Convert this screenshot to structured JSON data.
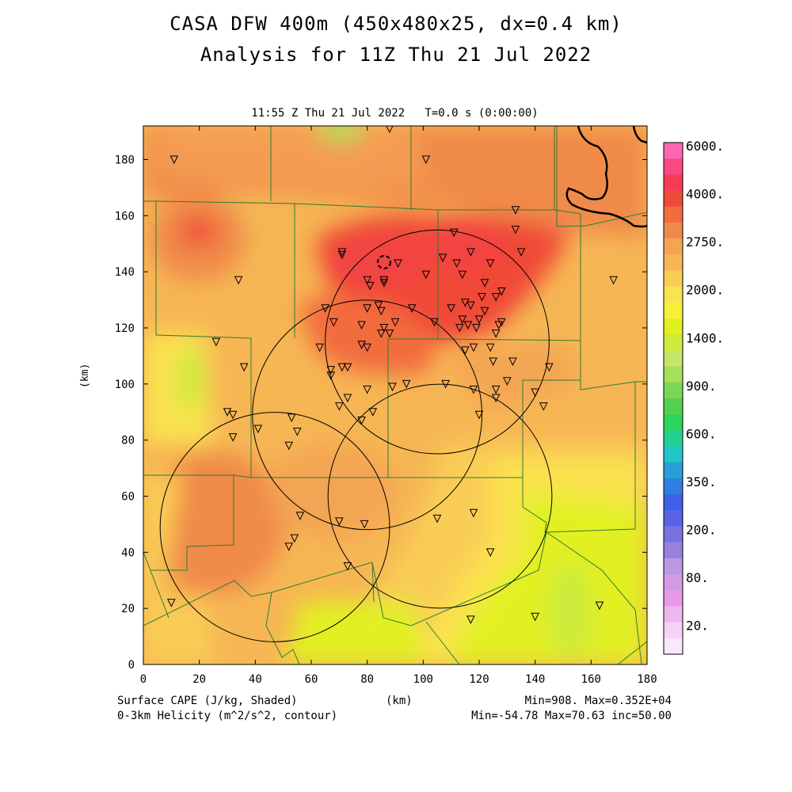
{
  "title": {
    "line1": "CASA DFW 400m (450x480x25, dx=0.4 km)",
    "line2": "Analysis for 11Z Thu 21 Jul 2022"
  },
  "subtitle": "11:55 Z Thu 21 Jul 2022   T=0.0 s (0:00:00)",
  "footer": {
    "left1": "Surface CAPE (J/kg, Shaded)",
    "left2": "0-3km Helicity (m^2/s^2, contour)",
    "xunit": "(km)",
    "right1": "Min=908. Max=0.352E+04",
    "right2": "Min=-54.78 Max=70.63 inc=50.00"
  },
  "colors": {
    "background_field": "#f6b654",
    "high_cape": "#f04a38",
    "mid_cape": "#f08a4a",
    "low_cape": "#e2f020",
    "county_lines": "#2e7d32",
    "radar_rings": "#000000"
  },
  "chart_data": {
    "type": "heatmap",
    "xlabel": "(km)",
    "ylabel": "(km)",
    "xlim": [
      0,
      180
    ],
    "ylim": [
      0,
      192
    ],
    "xticks": [
      0,
      20,
      40,
      60,
      80,
      100,
      120,
      140,
      160,
      180
    ],
    "yticks": [
      0,
      20,
      40,
      60,
      80,
      100,
      120,
      140,
      160,
      180
    ],
    "colorbar": {
      "labels": [
        "6000.",
        "4000.",
        "2750.",
        "2000.",
        "1400.",
        "900.",
        "600.",
        "350.",
        "200.",
        "80.",
        "20."
      ],
      "colors": [
        "#ff66b2",
        "#fb4a83",
        "#f73b54",
        "#f04a38",
        "#f26c3e",
        "#f08a4a",
        "#f4a552",
        "#f6b654",
        "#f9cd55",
        "#fbe250",
        "#f7f03a",
        "#e2f020",
        "#cdeb3a",
        "#c4e66a",
        "#a4e05a",
        "#7bd658",
        "#55d04e",
        "#2ed45c",
        "#24d290",
        "#22c6c6",
        "#2a9ed8",
        "#2f7fe0",
        "#3d60e8",
        "#5a62e6",
        "#7a72e2",
        "#9882e0",
        "#b89ae4",
        "#d59ae4",
        "#e89ae6",
        "#f0b6ee",
        "#f6d2f6",
        "#fbe6fb"
      ]
    },
    "cape_min": 908,
    "cape_max": 3520,
    "helicity_min": -54.78,
    "helicity_max": 70.63,
    "helicity_inc": 50.0,
    "radar_rings": [
      {
        "cx": 47,
        "cy": 49,
        "r": 41
      },
      {
        "cx": 80,
        "cy": 89,
        "r": 41
      },
      {
        "cx": 106,
        "cy": 60,
        "r": 40
      },
      {
        "cx": 105,
        "cy": 115,
        "r": 40
      }
    ],
    "stations": [
      [
        11,
        180
      ],
      [
        34,
        137
      ],
      [
        26,
        115
      ],
      [
        36,
        106
      ],
      [
        30,
        90
      ],
      [
        32,
        89
      ],
      [
        32,
        81
      ],
      [
        41,
        84
      ],
      [
        53,
        88
      ],
      [
        52,
        78
      ],
      [
        55,
        83
      ],
      [
        56,
        53
      ],
      [
        52,
        42
      ],
      [
        54,
        45
      ],
      [
        73,
        35
      ],
      [
        70,
        51
      ],
      [
        79,
        50
      ],
      [
        10,
        22
      ],
      [
        71,
        147
      ],
      [
        71,
        146
      ],
      [
        65,
        127
      ],
      [
        68,
        122
      ],
      [
        63,
        113
      ],
      [
        67,
        105
      ],
      [
        67,
        103
      ],
      [
        71,
        106
      ],
      [
        73,
        106
      ],
      [
        70,
        92
      ],
      [
        73,
        95
      ],
      [
        78,
        87
      ],
      [
        82,
        90
      ],
      [
        80,
        98
      ],
      [
        89,
        99
      ],
      [
        94,
        100
      ],
      [
        108,
        100
      ],
      [
        118,
        98
      ],
      [
        120,
        89
      ],
      [
        118,
        54
      ],
      [
        105,
        52
      ],
      [
        124,
        40
      ],
      [
        117,
        16
      ],
      [
        140,
        17
      ],
      [
        163,
        21
      ],
      [
        140,
        97
      ],
      [
        126,
        98
      ],
      [
        126,
        95
      ],
      [
        130,
        101
      ],
      [
        80,
        137
      ],
      [
        81,
        135
      ],
      [
        84,
        128
      ],
      [
        85,
        126
      ],
      [
        86,
        120
      ],
      [
        85,
        118
      ],
      [
        88,
        118
      ],
      [
        90,
        122
      ],
      [
        86,
        136
      ],
      [
        86,
        137
      ],
      [
        91,
        143
      ],
      [
        78,
        114
      ],
      [
        80,
        113
      ],
      [
        78,
        121
      ],
      [
        80,
        127
      ],
      [
        96,
        127
      ],
      [
        101,
        139
      ],
      [
        104,
        122
      ],
      [
        110,
        127
      ],
      [
        107,
        145
      ],
      [
        111,
        154
      ],
      [
        112,
        143
      ],
      [
        114,
        139
      ],
      [
        115,
        129
      ],
      [
        117,
        128
      ],
      [
        116,
        121
      ],
      [
        113,
        120
      ],
      [
        114,
        123
      ],
      [
        120,
        123
      ],
      [
        122,
        126
      ],
      [
        119,
        120
      ],
      [
        121,
        131
      ],
      [
        122,
        136
      ],
      [
        124,
        143
      ],
      [
        126,
        131
      ],
      [
        128,
        133
      ],
      [
        125,
        108
      ],
      [
        126,
        118
      ],
      [
        128,
        122
      ],
      [
        127,
        121
      ],
      [
        132,
        108
      ],
      [
        124,
        113
      ],
      [
        118,
        113
      ],
      [
        115,
        112
      ],
      [
        117,
        147
      ],
      [
        133,
        162
      ],
      [
        133,
        155
      ],
      [
        135,
        147
      ],
      [
        145,
        106
      ],
      [
        143,
        92
      ],
      [
        168,
        137
      ],
      [
        88,
        191
      ],
      [
        101,
        180
      ]
    ],
    "helicity_contours": [
      {
        "value": 50,
        "style": "solid",
        "label": "NE corner"
      },
      {
        "value": -50,
        "style": "dashed",
        "label": "small closed contour near (86,143)"
      }
    ]
  }
}
